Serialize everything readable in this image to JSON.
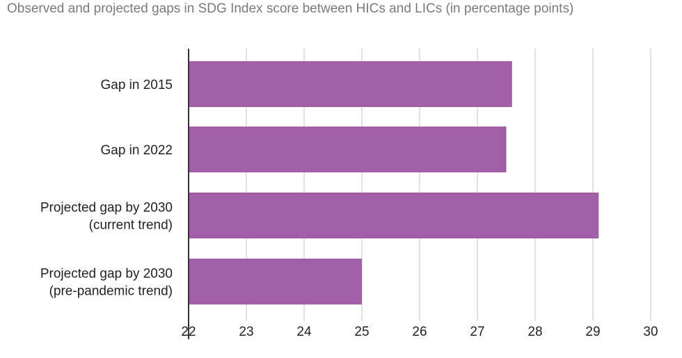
{
  "chart_data": {
    "type": "bar",
    "orientation": "horizontal",
    "title": "Observed and projected gaps in SDG Index score between HICs and LICs (in percentage points)",
    "categories": [
      [
        "Gap in 2015"
      ],
      [
        "Gap in 2022"
      ],
      [
        "Projected gap by 2030",
        "(current trend)"
      ],
      [
        "Projected gap by 2030",
        "(pre-pandemic trend)"
      ]
    ],
    "values": [
      27.6,
      27.5,
      29.1,
      25.0
    ],
    "xlim": [
      22,
      30
    ],
    "xticks": [
      "22",
      "23",
      "24",
      "25",
      "26",
      "27",
      "28",
      "29",
      "30"
    ],
    "xlabel": "",
    "ylabel": "",
    "grid": true,
    "colors": {
      "bar": "#a25ea6",
      "grid": "#d9d9d9",
      "axis": "#333333"
    }
  }
}
